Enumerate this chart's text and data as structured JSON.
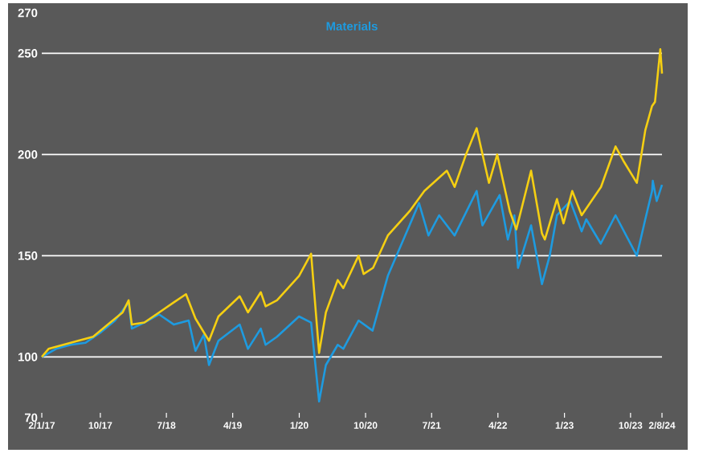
{
  "chart_data": {
    "type": "line",
    "xlim": [
      "2017-02-01",
      "2024-02-08"
    ],
    "xticks": [
      {
        "value": "2017-02-01",
        "label": "2/1/17"
      },
      {
        "value": "2017-10-01",
        "label": "10/17"
      },
      {
        "value": "2018-07-01",
        "label": "7/18"
      },
      {
        "value": "2019-04-01",
        "label": "4/19"
      },
      {
        "value": "2020-01-01",
        "label": "1/20"
      },
      {
        "value": "2020-10-01",
        "label": "10/20"
      },
      {
        "value": "2021-07-01",
        "label": "7/21"
      },
      {
        "value": "2022-04-01",
        "label": "4/22"
      },
      {
        "value": "2023-01-01",
        "label": "1/23"
      },
      {
        "value": "2023-10-01",
        "label": "10/23"
      },
      {
        "value": "2024-02-08",
        "label": "2/8/24"
      }
    ],
    "ylim": [
      70,
      270
    ],
    "yticks": [
      70,
      100,
      150,
      200,
      250,
      270
    ],
    "grid": "y",
    "legend": "top",
    "series": [
      {
        "name": "Materials",
        "color": "#1e9be0",
        "x": [
          "2017-02-01",
          "2017-04-01",
          "2017-06-01",
          "2017-08-01",
          "2017-10-01",
          "2017-12-01",
          "2018-01-26",
          "2018-02-08",
          "2018-04-01",
          "2018-06-01",
          "2018-08-01",
          "2018-10-01",
          "2018-10-29",
          "2018-12-03",
          "2018-12-24",
          "2019-02-01",
          "2019-04-30",
          "2019-06-03",
          "2019-07-26",
          "2019-08-15",
          "2019-10-01",
          "2019-12-31",
          "2020-02-19",
          "2020-03-23",
          "2020-04-20",
          "2020-06-08",
          "2020-07-01",
          "2020-09-02",
          "2020-10-30",
          "2021-01-01",
          "2021-05-10",
          "2021-06-18",
          "2021-08-01",
          "2021-10-04",
          "2022-01-03",
          "2022-01-27",
          "2022-04-08",
          "2022-05-12",
          "2022-06-08",
          "2022-06-23",
          "2022-08-16",
          "2022-09-30",
          "2022-11-01",
          "2022-12-01",
          "2023-01-25",
          "2023-03-13",
          "2023-04-01",
          "2023-05-31",
          "2023-07-31",
          "2023-10-27",
          "2023-12-01",
          "2023-12-29",
          "2024-01-01",
          "2024-01-17",
          "2024-02-08"
        ],
        "values": [
          100,
          104,
          106,
          107,
          112,
          118,
          127,
          114,
          117,
          121,
          116,
          118,
          103,
          111,
          96,
          108,
          116,
          104,
          114,
          106,
          110,
          120,
          117,
          78,
          96,
          106,
          104,
          118,
          113,
          140,
          176,
          160,
          170,
          160,
          182,
          165,
          180,
          158,
          170,
          144,
          165,
          136,
          150,
          170,
          177,
          162,
          168,
          156,
          170,
          150,
          168,
          182,
          187,
          177,
          185
        ]
      },
      {
        "color": "#f5cf12",
        "x": [
          "2017-02-01",
          "2017-03-01",
          "2017-05-01",
          "2017-07-01",
          "2017-09-01",
          "2017-11-01",
          "2018-01-01",
          "2018-01-26",
          "2018-02-08",
          "2018-04-01",
          "2018-06-01",
          "2018-08-01",
          "2018-09-20",
          "2018-10-29",
          "2018-12-24",
          "2019-02-01",
          "2019-04-30",
          "2019-06-03",
          "2019-07-26",
          "2019-08-15",
          "2019-10-01",
          "2019-12-31",
          "2020-02-19",
          "2020-03-23",
          "2020-04-20",
          "2020-06-08",
          "2020-07-01",
          "2020-09-02",
          "2020-09-23",
          "2020-11-01",
          "2021-01-01",
          "2021-04-01",
          "2021-06-01",
          "2021-09-02",
          "2021-10-04",
          "2021-11-20",
          "2022-01-03",
          "2022-02-23",
          "2022-03-29",
          "2022-05-20",
          "2022-06-16",
          "2022-08-16",
          "2022-09-30",
          "2022-10-12",
          "2022-12-01",
          "2022-12-28",
          "2023-02-02",
          "2023-03-13",
          "2023-06-01",
          "2023-07-31",
          "2023-09-01",
          "2023-10-27",
          "2023-12-01",
          "2023-12-29",
          "2024-01-10",
          "2024-02-01",
          "2024-02-08"
        ],
        "values": [
          100,
          104,
          106,
          108,
          110,
          116,
          122,
          128,
          116,
          117,
          122,
          127,
          131,
          119,
          108,
          120,
          130,
          122,
          132,
          125,
          128,
          140,
          151,
          102,
          122,
          138,
          134,
          150,
          141,
          144,
          160,
          172,
          182,
          192,
          184,
          200,
          213,
          186,
          200,
          172,
          163,
          192,
          161,
          158,
          178,
          166,
          182,
          170,
          184,
          204,
          197,
          186,
          212,
          224,
          226,
          252,
          240
        ]
      }
    ]
  }
}
